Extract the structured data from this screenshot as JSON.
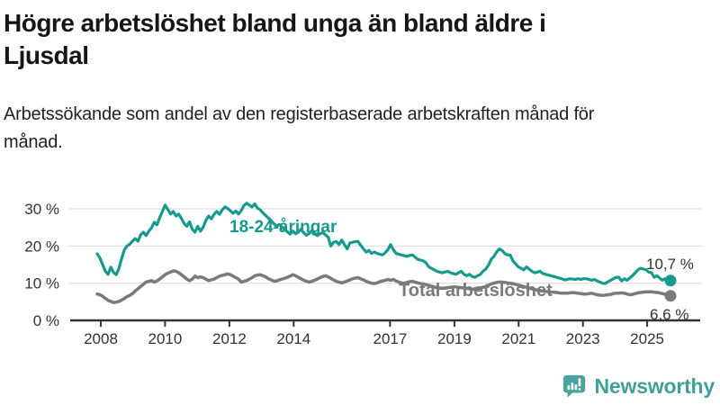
{
  "header": {
    "title": "Högre arbetslöshet bland unga än bland äldre i Ljusdal",
    "subtitle": "Arbetssökande som andel av den registerbaserade arbetskraften månad för månad."
  },
  "chart_data": {
    "type": "line",
    "title": "Högre arbetslöshet bland unga än bland äldre i Ljusdal",
    "subtitle": "Arbetssökande som andel av den registerbaserade arbetskraften månad för månad.",
    "unit": "%",
    "x_start": "2008-01",
    "x_interval": "monthly",
    "x_end": "2025-08",
    "x_ticks": [
      2008,
      2010,
      2012,
      2014,
      2017,
      2019,
      2021,
      2023,
      2025
    ],
    "yticks": [
      0,
      10,
      20,
      30
    ],
    "ytick_labels": [
      "0 %",
      "10 %",
      "20 %",
      "30 %"
    ],
    "ylim": [
      0,
      33
    ],
    "grid": true,
    "legend_position": "inline-labels",
    "colors": {
      "youth": "#169a8c",
      "total": "#7a7a7a",
      "axis": "#333333",
      "grid": "#d9d9d9"
    },
    "series": [
      {
        "name": "18-24-åringar",
        "color": "#169a8c",
        "end_label": "10,7 %",
        "end_value": 10.7,
        "values": [
          17.9,
          16.8,
          15.0,
          13.2,
          12.4,
          14.3,
          12.9,
          12.3,
          14.0,
          16.7,
          19.0,
          20.0,
          20.5,
          21.3,
          22.0,
          21.3,
          23.0,
          23.7,
          22.8,
          24.0,
          24.9,
          26.4,
          25.7,
          27.6,
          29.3,
          31.0,
          29.8,
          28.6,
          29.3,
          28.1,
          28.6,
          27.4,
          26.0,
          25.3,
          26.5,
          24.5,
          23.7,
          25.3,
          24.0,
          25.0,
          26.9,
          28.1,
          27.3,
          28.5,
          29.3,
          28.5,
          29.7,
          30.5,
          30.1,
          29.5,
          28.8,
          29.4,
          28.6,
          29.5,
          30.9,
          31.5,
          31.0,
          30.5,
          31.3,
          30.2,
          29.7,
          28.9,
          28.2,
          27.5,
          26.8,
          26.0,
          25.4,
          25.8,
          25.0,
          24.4,
          23.8,
          23.2,
          24.0,
          23.3,
          23.7,
          24.5,
          23.6,
          22.9,
          23.4,
          24.1,
          23.5,
          22.8,
          23.3,
          23.6,
          23.0,
          22.4,
          20.0,
          21.0,
          21.2,
          20.4,
          21.6,
          20.4,
          19.2,
          20.8,
          21.0,
          21.2,
          21.2,
          20.2,
          19.2,
          18.4,
          18.8,
          18.0,
          18.4,
          18.0,
          17.8,
          17.6,
          18.2,
          19.0,
          20.4,
          19.0,
          18.0,
          17.8,
          17.6,
          17.4,
          17.2,
          17.5,
          17.6,
          17.0,
          16.4,
          16.2,
          16.0,
          15.5,
          14.4,
          14.0,
          13.6,
          13.2,
          13.0,
          12.8,
          13.0,
          13.2,
          12.8,
          12.6,
          12.4,
          12.8,
          13.2,
          12.4,
          12.0,
          12.4,
          11.8,
          11.6,
          12.0,
          12.4,
          13.2,
          13.8,
          14.8,
          16.4,
          17.2,
          18.4,
          19.2,
          18.8,
          18.0,
          17.6,
          17.6,
          16.0,
          15.2,
          14.4,
          14.0,
          13.6,
          14.4,
          13.8,
          13.2,
          12.8,
          13.0,
          13.2,
          12.6,
          12.4,
          12.2,
          12.0,
          11.8,
          11.6,
          11.4,
          11.2,
          10.9,
          11.0,
          11.2,
          11.1,
          11.0,
          11.2,
          11.0,
          11.2,
          11.2,
          11.0,
          10.8,
          11.0,
          10.6,
          10.3,
          10.0,
          9.9,
          10.4,
          10.8,
          11.2,
          11.6,
          11.6,
          10.6,
          11.2,
          10.8,
          11.4,
          12.0,
          12.8,
          13.6,
          14.0,
          13.8,
          13.6,
          13.0,
          12.8,
          11.6,
          12.0,
          11.4,
          10.8,
          11.2,
          10.9,
          10.7
        ]
      },
      {
        "name": "Total arbetslöshet",
        "color": "#7a7a7a",
        "end_label": "6,6 %",
        "end_value": 6.6,
        "values": [
          7.1,
          6.9,
          6.5,
          5.9,
          5.4,
          5.1,
          4.8,
          4.9,
          5.1,
          5.5,
          5.9,
          6.4,
          6.7,
          7.2,
          7.9,
          8.5,
          9.1,
          9.7,
          10.3,
          10.5,
          10.7,
          10.3,
          10.6,
          11.1,
          11.7,
          12.3,
          12.7,
          13.0,
          13.3,
          13.2,
          12.8,
          12.3,
          11.7,
          11.1,
          10.7,
          11.1,
          11.9,
          11.5,
          11.7,
          11.5,
          11.1,
          10.7,
          10.9,
          11.1,
          11.5,
          11.9,
          12.1,
          12.3,
          12.5,
          12.3,
          11.9,
          11.5,
          11.1,
          10.3,
          10.5,
          10.7,
          11.1,
          11.5,
          12.0,
          12.2,
          12.3,
          12.0,
          11.7,
          11.2,
          10.9,
          10.6,
          10.6,
          10.9,
          11.1,
          11.3,
          11.6,
          11.9,
          12.3,
          12.0,
          11.6,
          11.2,
          10.8,
          10.5,
          10.3,
          10.5,
          10.8,
          11.1,
          11.5,
          11.8,
          12.0,
          11.7,
          11.3,
          10.9,
          10.5,
          10.3,
          10.1,
          10.3,
          10.6,
          10.9,
          11.2,
          11.4,
          11.5,
          11.2,
          10.9,
          10.5,
          10.2,
          10.0,
          9.9,
          10.1,
          10.4,
          10.6,
          10.8,
          11.0,
          10.8,
          11.0,
          10.6,
          10.3,
          10.1,
          10.0,
          10.2,
          10.4,
          10.5,
          10.3,
          10.1,
          9.9,
          9.8,
          9.6,
          9.4,
          9.2,
          9.0,
          8.8,
          8.7,
          8.6,
          8.7,
          8.8,
          8.9,
          9.0,
          9.0,
          8.9,
          8.8,
          8.7,
          8.6,
          8.5,
          8.4,
          8.5,
          8.6,
          8.7,
          8.9,
          9.1,
          9.4,
          9.8,
          10.0,
          10.2,
          10.3,
          10.3,
          10.2,
          10.1,
          10.0,
          9.9,
          9.7,
          9.5,
          9.3,
          9.1,
          8.9,
          8.7,
          8.5,
          8.3,
          8.1,
          8.0,
          7.9,
          7.8,
          7.7,
          7.6,
          7.6,
          7.5,
          7.4,
          7.3,
          7.3,
          7.3,
          7.4,
          7.5,
          7.4,
          7.3,
          7.2,
          7.1,
          7.1,
          7.2,
          7.3,
          7.1,
          6.9,
          6.8,
          6.7,
          6.8,
          6.9,
          7.0,
          7.2,
          7.3,
          7.3,
          7.4,
          7.3,
          7.1,
          6.9,
          7.0,
          7.2,
          7.4,
          7.5,
          7.6,
          7.7,
          7.7,
          7.7,
          7.6,
          7.5,
          7.4,
          7.2,
          7.0,
          6.8,
          6.6
        ]
      }
    ]
  },
  "footer": {
    "brand": "Newsworthy",
    "brand_color": "#429f98",
    "logo_icon": "bar-chart-speech-bubble-icon"
  }
}
